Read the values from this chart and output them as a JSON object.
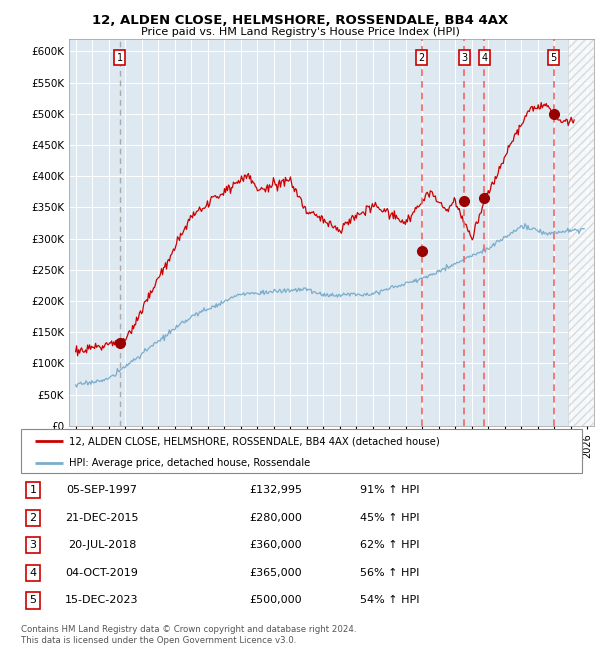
{
  "title1": "12, ALDEN CLOSE, HELMSHORE, ROSSENDALE, BB4 4AX",
  "title2": "Price paid vs. HM Land Registry's House Price Index (HPI)",
  "ylabel_ticks": [
    "£0",
    "£50K",
    "£100K",
    "£150K",
    "£200K",
    "£250K",
    "£300K",
    "£350K",
    "£400K",
    "£450K",
    "£500K",
    "£550K",
    "£600K"
  ],
  "ytick_values": [
    0,
    50000,
    100000,
    150000,
    200000,
    250000,
    300000,
    350000,
    400000,
    450000,
    500000,
    550000,
    600000
  ],
  "xlim_start": 1994.6,
  "xlim_end": 2026.4,
  "ylim_min": 0,
  "ylim_max": 620000,
  "background_color": "#dde8f0",
  "red_line_color": "#cc0000",
  "blue_line_color": "#7aadcc",
  "sale_marker_color": "#990000",
  "dashed_line_color": "#ee6666",
  "vline_1_color": "#bbbbbb",
  "transactions": [
    {
      "num": 1,
      "date_x": 1997.67,
      "price": 132995
    },
    {
      "num": 2,
      "date_x": 2015.97,
      "price": 280000
    },
    {
      "num": 3,
      "date_x": 2018.54,
      "price": 360000
    },
    {
      "num": 4,
      "date_x": 2019.75,
      "price": 365000
    },
    {
      "num": 5,
      "date_x": 2023.96,
      "price": 500000
    }
  ],
  "legend_line1": "12, ALDEN CLOSE, HELMSHORE, ROSSENDALE, BB4 4AX (detached house)",
  "legend_line2": "HPI: Average price, detached house, Rossendale",
  "footer1": "Contains HM Land Registry data © Crown copyright and database right 2024.",
  "footer2": "This data is licensed under the Open Government Licence v3.0.",
  "table_rows": [
    {
      "num": 1,
      "date": "05-SEP-1997",
      "price": "£132,995",
      "hpi": "91% ↑ HPI"
    },
    {
      "num": 2,
      "date": "21-DEC-2015",
      "price": "£280,000",
      "hpi": "45% ↑ HPI"
    },
    {
      "num": 3,
      "date": "20-JUL-2018",
      "price": "£360,000",
      "hpi": "62% ↑ HPI"
    },
    {
      "num": 4,
      "date": "04-OCT-2019",
      "price": "£365,000",
      "hpi": "56% ↑ HPI"
    },
    {
      "num": 5,
      "date": "15-DEC-2023",
      "price": "£500,000",
      "hpi": "54% ↑ HPI"
    }
  ]
}
